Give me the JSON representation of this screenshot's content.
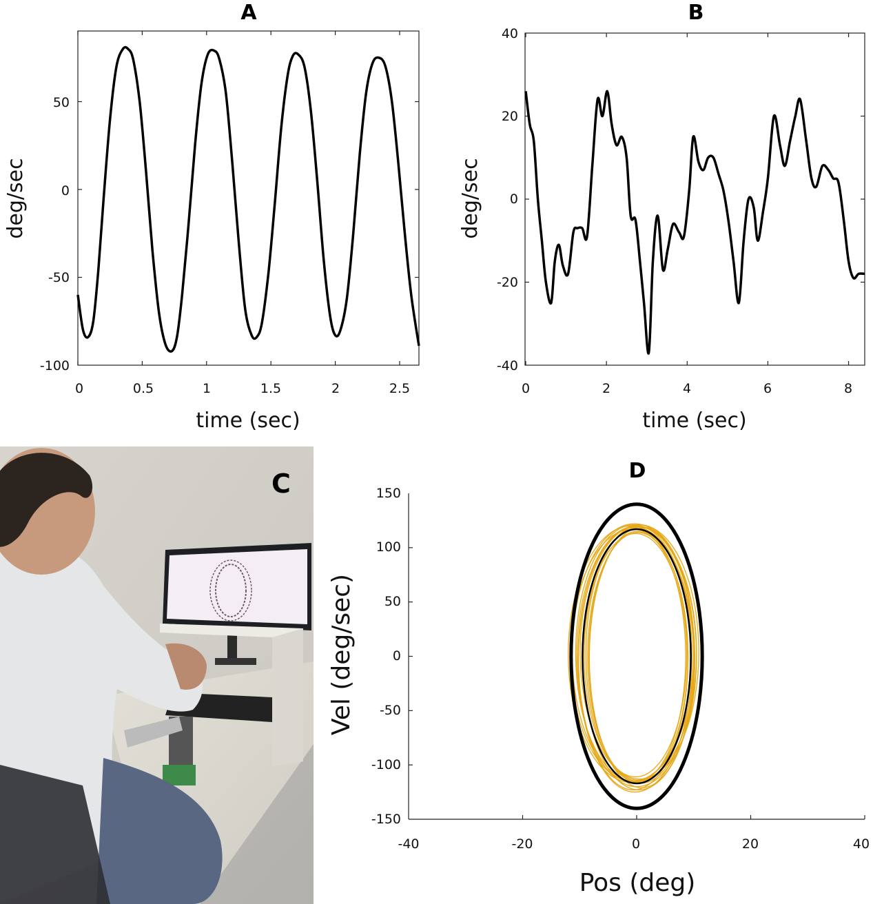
{
  "panels": {
    "A": {
      "title": "A",
      "xlabel": "time (sec)",
      "ylabel": "deg/sec",
      "xticks": [
        "0",
        "0.5",
        "1",
        "1.5",
        "2",
        "2.5"
      ],
      "yticks": [
        "50",
        "0",
        "-50",
        "-100"
      ]
    },
    "B": {
      "title": "B",
      "xlabel": "time (sec)",
      "ylabel": "deg/sec",
      "xticks": [
        "0",
        "2",
        "4",
        "6",
        "8"
      ],
      "yticks": [
        "40",
        "20",
        "0",
        "-20",
        "-40"
      ]
    },
    "C": {
      "title": "C"
    },
    "D": {
      "title": "D",
      "xlabel": "Pos (deg)",
      "ylabel": "Vel (deg/sec)",
      "xticks": [
        "-40",
        "-20",
        "0",
        "20",
        "40"
      ],
      "yticks": [
        "150",
        "100",
        "50",
        "0",
        "-50",
        "-100",
        "-150"
      ]
    }
  },
  "colors": {
    "trace": "#000000",
    "trial_ellipses": "#e6a817",
    "photo_wall": "#d8d6cf",
    "photo_shirt": "#e4e6e8"
  },
  "chart_data": [
    {
      "panel": "A",
      "type": "line",
      "xlabel": "time (sec)",
      "ylabel": "deg/sec",
      "xlim": [
        0,
        2.65
      ],
      "ylim": [
        -100,
        100
      ],
      "x": [
        0,
        0.04,
        0.08,
        0.12,
        0.16,
        0.2,
        0.25,
        0.3,
        0.35,
        0.39,
        0.43,
        0.48,
        0.53,
        0.58,
        0.63,
        0.68,
        0.73,
        0.77,
        0.81,
        0.86,
        0.91,
        0.96,
        1.01,
        1.06,
        1.1,
        1.15,
        1.2,
        1.25,
        1.3,
        1.35,
        1.39,
        1.43,
        1.48,
        1.53,
        1.58,
        1.63,
        1.67,
        1.71,
        1.76,
        1.81,
        1.86,
        1.91,
        1.96,
        2.0,
        2.04,
        2.09,
        2.14,
        2.19,
        2.24,
        2.29,
        2.34,
        2.39,
        2.44,
        2.49,
        2.54,
        2.59,
        2.65
      ],
      "y": [
        -60,
        -80,
        -84,
        -75,
        -45,
        -5,
        40,
        70,
        80,
        80,
        74,
        50,
        10,
        -35,
        -70,
        -88,
        -92,
        -84,
        -60,
        -20,
        25,
        60,
        77,
        79,
        74,
        55,
        15,
        -30,
        -68,
        -83,
        -84,
        -76,
        -48,
        -8,
        35,
        65,
        76,
        77,
        70,
        45,
        5,
        -40,
        -72,
        -83,
        -80,
        -62,
        -25,
        20,
        55,
        72,
        75,
        70,
        50,
        15,
        -25,
        -60,
        -89
      ]
    },
    {
      "panel": "B",
      "type": "line",
      "xlabel": "time (sec)",
      "ylabel": "deg/sec",
      "xlim": [
        0,
        8.4
      ],
      "ylim": [
        -40,
        40
      ],
      "x": [
        0,
        0.1,
        0.2,
        0.3,
        0.4,
        0.5,
        0.63,
        0.72,
        0.82,
        0.92,
        1.05,
        1.18,
        1.28,
        1.4,
        1.52,
        1.65,
        1.78,
        1.9,
        2.02,
        2.13,
        2.25,
        2.38,
        2.5,
        2.6,
        2.72,
        2.83,
        2.93,
        3.05,
        3.15,
        3.27,
        3.4,
        3.52,
        3.65,
        3.8,
        3.92,
        4.05,
        4.15,
        4.28,
        4.4,
        4.52,
        4.65,
        4.78,
        4.9,
        5.02,
        5.15,
        5.28,
        5.4,
        5.52,
        5.65,
        5.75,
        5.88,
        6.0,
        6.15,
        6.3,
        6.42,
        6.55,
        6.68,
        6.8,
        6.95,
        7.08,
        7.2,
        7.35,
        7.5,
        7.62,
        7.75,
        7.88,
        8.0,
        8.12,
        8.25,
        8.4
      ],
      "y": [
        26,
        18,
        14,
        0,
        -10,
        -20,
        -25,
        -15,
        -11,
        -16,
        -18,
        -8,
        -7,
        -7,
        -9,
        8,
        24,
        20,
        26,
        18,
        13,
        15,
        10,
        -4,
        -5,
        -15,
        -25,
        -37,
        -15,
        -4,
        -17,
        -12,
        -6,
        -8,
        -9,
        2,
        15,
        9,
        7,
        10,
        10,
        6,
        2,
        -5,
        -15,
        -25,
        -10,
        0,
        -2,
        -10,
        -3,
        5,
        20,
        13,
        8,
        14,
        20,
        24,
        14,
        5,
        3,
        8,
        7,
        5,
        4,
        -5,
        -15,
        -19,
        -18,
        -18
      ]
    },
    {
      "panel": "D",
      "type": "line",
      "xlabel": "Pos (deg)",
      "ylabel": "Vel (deg/sec)",
      "xlim": [
        -40,
        40
      ],
      "ylim": [
        -150,
        150
      ],
      "series": [
        {
          "name": "",
          "shape": "ellipse",
          "cx": 0,
          "cy": 0,
          "rx": 11.5,
          "ry": 140
        },
        {
          "name": "",
          "shape": "ellipse",
          "cx": 0,
          "cy": 0,
          "rx": 9.5,
          "ry": 117
        }
      ],
      "trials": [
        {
          "cx": 0.0,
          "cy": 0,
          "rx": 10.5,
          "ry": 120
        },
        {
          "cx": -0.5,
          "cy": 3,
          "rx": 10.2,
          "ry": 118
        },
        {
          "cx": 0.4,
          "cy": -2,
          "rx": 9.8,
          "ry": 121
        },
        {
          "cx": -0.8,
          "cy": 1,
          "rx": 10.8,
          "ry": 116
        },
        {
          "cx": 0.6,
          "cy": 2,
          "rx": 9.5,
          "ry": 119
        },
        {
          "cx": -0.3,
          "cy": -3,
          "rx": 10.0,
          "ry": 122
        },
        {
          "cx": 0.2,
          "cy": 0,
          "rx": 8.8,
          "ry": 114
        },
        {
          "cx": -1.0,
          "cy": 2,
          "rx": 11.0,
          "ry": 118
        },
        {
          "cx": 0.9,
          "cy": -1,
          "rx": 9.2,
          "ry": 120
        },
        {
          "cx": -0.2,
          "cy": 1,
          "rx": 9.0,
          "ry": 112
        },
        {
          "cx": 0.5,
          "cy": 4,
          "rx": 10.4,
          "ry": 117
        },
        {
          "cx": -0.6,
          "cy": -2,
          "rx": 9.6,
          "ry": 121
        },
        {
          "cx": 0.1,
          "cy": 0,
          "rx": 8.5,
          "ry": 115
        },
        {
          "cx": -0.4,
          "cy": 3,
          "rx": 10.9,
          "ry": 119
        }
      ]
    }
  ]
}
